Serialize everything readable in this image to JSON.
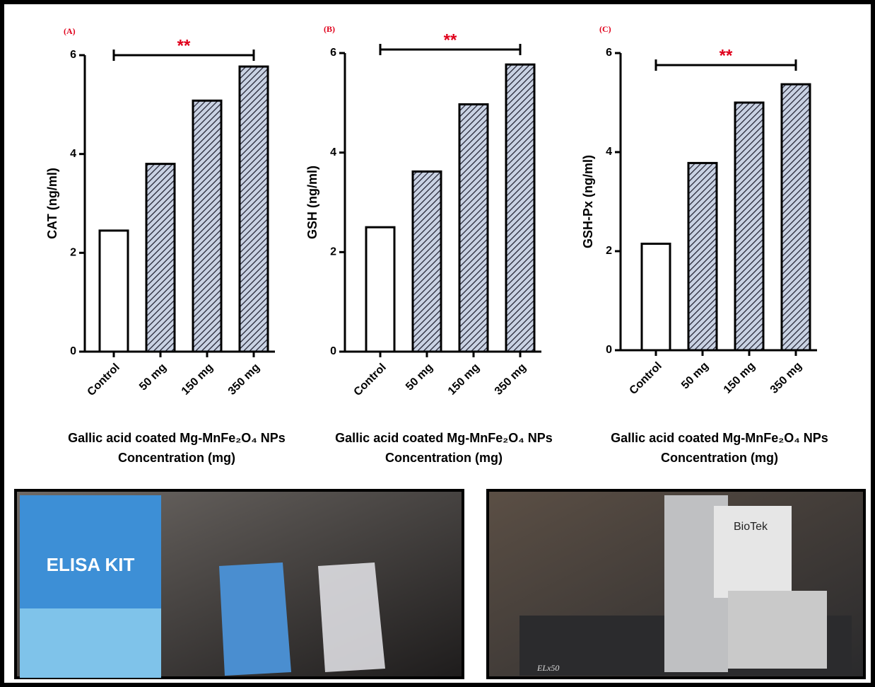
{
  "chart_data": [
    {
      "type": "bar",
      "panel": "(A)",
      "ylabel": "CAT (ng/ml)",
      "annotation": "**",
      "xlabel": [
        "Gallic acid coated Mg-MnFe₂O₄ NPs",
        "Concentration (mg)"
      ],
      "categories": [
        "Control",
        "50 mg",
        "150 mg",
        "350 mg"
      ],
      "values": [
        2.45,
        3.8,
        5.08,
        5.77
      ],
      "hatch": [
        false,
        true,
        true,
        true
      ],
      "color": "#c9d2e3",
      "ylim": [
        0,
        6
      ],
      "yticks": [
        0,
        2,
        4,
        6
      ]
    },
    {
      "type": "bar",
      "panel": "(B)",
      "ylabel": "GSH (ng/ml)",
      "annotation": "**",
      "xlabel": [
        "Gallic acid coated Mg-MnFe₂O₄ NPs",
        "Concentration (mg)"
      ],
      "categories": [
        "Control",
        "50 mg",
        "150 mg",
        "350 mg"
      ],
      "values": [
        2.5,
        3.62,
        4.97,
        5.77
      ],
      "hatch": [
        false,
        true,
        true,
        true
      ],
      "color": "#c9d2e3",
      "ylim": [
        0,
        6
      ],
      "yticks": [
        0,
        2,
        4,
        6
      ]
    },
    {
      "type": "bar",
      "panel": "(C)",
      "ylabel": "GSH-Px (ng/ml)",
      "annotation": "**",
      "xlabel": [
        "Gallic acid coated Mg-MnFe₂O₄ NPs",
        "Concentration (mg)"
      ],
      "categories": [
        "Control",
        "50 mg",
        "150 mg",
        "350 mg"
      ],
      "values": [
        2.15,
        3.78,
        5.0,
        5.37
      ],
      "hatch": [
        false,
        true,
        true,
        true
      ],
      "color": "#c9d2e3",
      "ylim": [
        0,
        6
      ],
      "yticks": [
        0,
        2,
        4,
        6
      ]
    }
  ],
  "photos": {
    "kit_label": "ELISA KIT",
    "reader_brand": "BioTek",
    "reader_model": "ELx50"
  }
}
